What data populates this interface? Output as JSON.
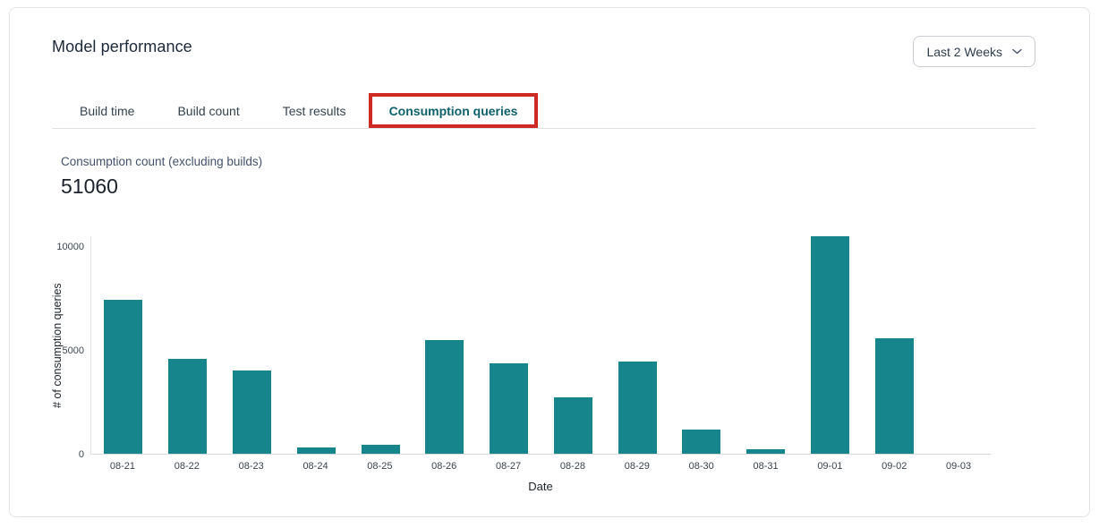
{
  "header": {
    "title": "Model performance",
    "date_range": {
      "value": "Last 2 Weeks",
      "icon": "chevron-down-icon"
    }
  },
  "tabs": [
    {
      "label": "Build time",
      "active": false
    },
    {
      "label": "Build count",
      "active": false
    },
    {
      "label": "Test results",
      "active": false
    },
    {
      "label": "Consumption queries",
      "active": true
    }
  ],
  "annotation": {
    "type": "highlight-box",
    "target": "Consumption queries tab",
    "color": "#cd2a23"
  },
  "metric": {
    "label": "Consumption count (excluding builds)",
    "value": "51060"
  },
  "chart_data": {
    "type": "bar",
    "categories": [
      "08-21",
      "08-22",
      "08-23",
      "08-24",
      "08-25",
      "08-26",
      "08-27",
      "08-28",
      "08-29",
      "08-30",
      "08-31",
      "09-01",
      "09-02",
      "09-03"
    ],
    "values": [
      7400,
      4560,
      4020,
      300,
      430,
      5480,
      4350,
      2700,
      4450,
      1150,
      200,
      10470,
      5550,
      0
    ],
    "title": "",
    "xlabel": "Date",
    "ylabel": "# of consumption queries",
    "ylim": [
      0,
      10500
    ],
    "yticks": [
      0,
      5000,
      10000
    ],
    "bar_color": "#17858c",
    "grid": false,
    "legend": false
  }
}
